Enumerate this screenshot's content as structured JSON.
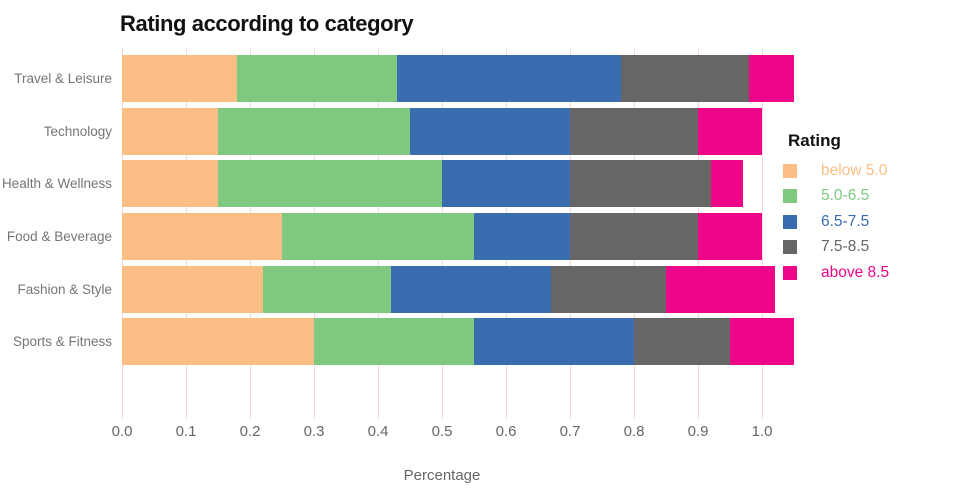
{
  "chart_data": {
    "type": "stacked-bar-horizontal",
    "title": "Rating according to category",
    "xlabel": "Percentage",
    "categories": [
      "Travel & Leisure",
      "Technology",
      "Health & Wellness",
      "Food & Beverage",
      "Fashion & Style",
      "Sports & Fitness"
    ],
    "series": [
      {
        "name": "below 5.0",
        "color": "#FBBF85",
        "values": [
          0.18,
          0.15,
          0.15,
          0.25,
          0.22,
          0.3
        ]
      },
      {
        "name": "5.0-6.5",
        "color": "#7EC87F",
        "values": [
          0.25,
          0.3,
          0.35,
          0.3,
          0.2,
          0.25
        ]
      },
      {
        "name": "6.5-7.5",
        "color": "#3A6CB0",
        "values": [
          0.35,
          0.25,
          0.2,
          0.15,
          0.25,
          0.25
        ]
      },
      {
        "name": "7.5-8.5",
        "color": "#666666",
        "values": [
          0.2,
          0.2,
          0.22,
          0.2,
          0.18,
          0.15
        ]
      },
      {
        "name": "above 8.5",
        "color": "#EE0688",
        "values": [
          0.07,
          0.1,
          0.05,
          0.1,
          0.17,
          0.1
        ]
      }
    ],
    "totals": [
      1.05,
      1.0,
      0.97,
      1.0,
      1.02,
      1.05
    ],
    "x_ticks": [
      "0.0",
      "0.1",
      "0.2",
      "0.3",
      "0.4",
      "0.5",
      "0.6",
      "0.7",
      "0.8",
      "0.9",
      "1.0"
    ],
    "xlim": [
      0.0,
      1.05
    ],
    "grid": "vertical",
    "grid_color": "#f2d8de",
    "legend": {
      "title": "Rating",
      "position": "right"
    }
  }
}
